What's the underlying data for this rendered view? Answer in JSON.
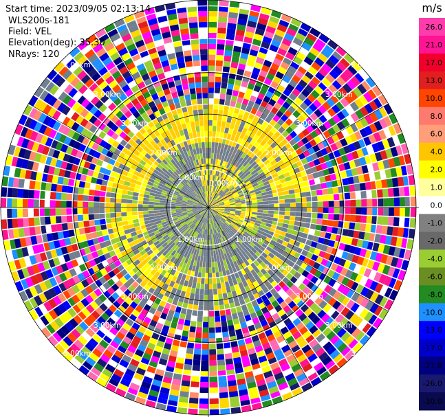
{
  "header": {
    "start_time": "Start time: 2023/09/05 02:13:14",
    "station": "WLS200s-181",
    "field": "Field: VEL",
    "elevation": "Elevation(deg): 35.30",
    "nrays": "NRays: 120"
  },
  "chart_data": {
    "type": "heatmap",
    "projection": "polar-ppi",
    "field": "VEL",
    "nrays": 120,
    "range_ring_labels": [
      "1.00km",
      "2.00km",
      "3.00km"
    ],
    "colorbar": {
      "unit": "m/s",
      "ticks": [
        "26.0",
        "21.0",
        "17.0",
        "13.0",
        "10.0",
        "8.0",
        "6.0",
        "4.0",
        "2.0",
        "1.0",
        "0.0",
        "-1.0",
        "-2.0",
        "-4.0",
        "-6.0",
        "-8.0",
        "-10.0",
        "-13.0",
        "-17.0",
        "-21.0",
        "-26.0",
        "-30.0"
      ],
      "colors": [
        "#ff3cac",
        "#ff1493",
        "#f0002a",
        "#e11f1f",
        "#ff4500",
        "#ff7a6e",
        "#ff9e78",
        "#ffc500",
        "#ffff00",
        "#ffff9e",
        "#ffffff",
        "#808080",
        "#696969",
        "#9acd32",
        "#6b8e23",
        "#228b22",
        "#1e90ff",
        "#0000ff",
        "#0000cd",
        "#000080",
        "#191970",
        "#0a0a50"
      ]
    },
    "palette": {
      "near_field": [
        "#9acd32",
        "#708090",
        "#808080",
        "#6e7b8b"
      ],
      "approach": [
        "#ffd700",
        "#ffcc00",
        "#ffff00"
      ],
      "noise": [
        "#ff1493",
        "#ff00ff",
        "#0000cd",
        "#0000ff",
        "#ffd700",
        "#9acd32",
        "#228b22",
        "#e11f1f",
        "#191970",
        "#ff4500",
        "#1e90ff",
        "#ffff00",
        "#708090",
        "#ff69b4",
        "#ff8c69",
        "#000080",
        "#ffffff"
      ]
    }
  }
}
